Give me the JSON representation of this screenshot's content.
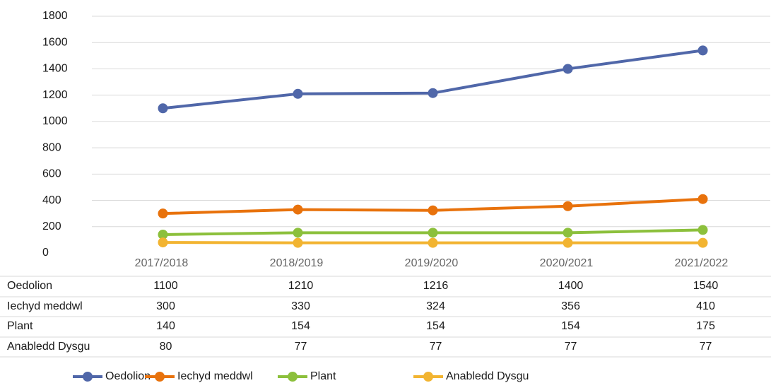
{
  "chart_data": {
    "type": "line",
    "categories": [
      "2017/2018",
      "2018/2019",
      "2019/2020",
      "2020/2021",
      "2021/2022"
    ],
    "series": [
      {
        "name": "Oedolion",
        "color": "#5067a9",
        "values": [
          1100,
          1210,
          1216,
          1400,
          1540
        ]
      },
      {
        "name": "Iechyd meddwl",
        "color": "#e8720c",
        "values": [
          300,
          330,
          324,
          356,
          410
        ]
      },
      {
        "name": "Plant",
        "color": "#8cc03c",
        "values": [
          140,
          154,
          154,
          154,
          175
        ]
      },
      {
        "name": "Anabledd Dysgu",
        "color": "#f2b431",
        "values": [
          80,
          77,
          77,
          77,
          77
        ]
      }
    ],
    "ylim": [
      0,
      1800
    ],
    "yticks": [
      0,
      200,
      400,
      600,
      800,
      1000,
      1200,
      1400,
      1600,
      1800
    ],
    "grid": true
  }
}
